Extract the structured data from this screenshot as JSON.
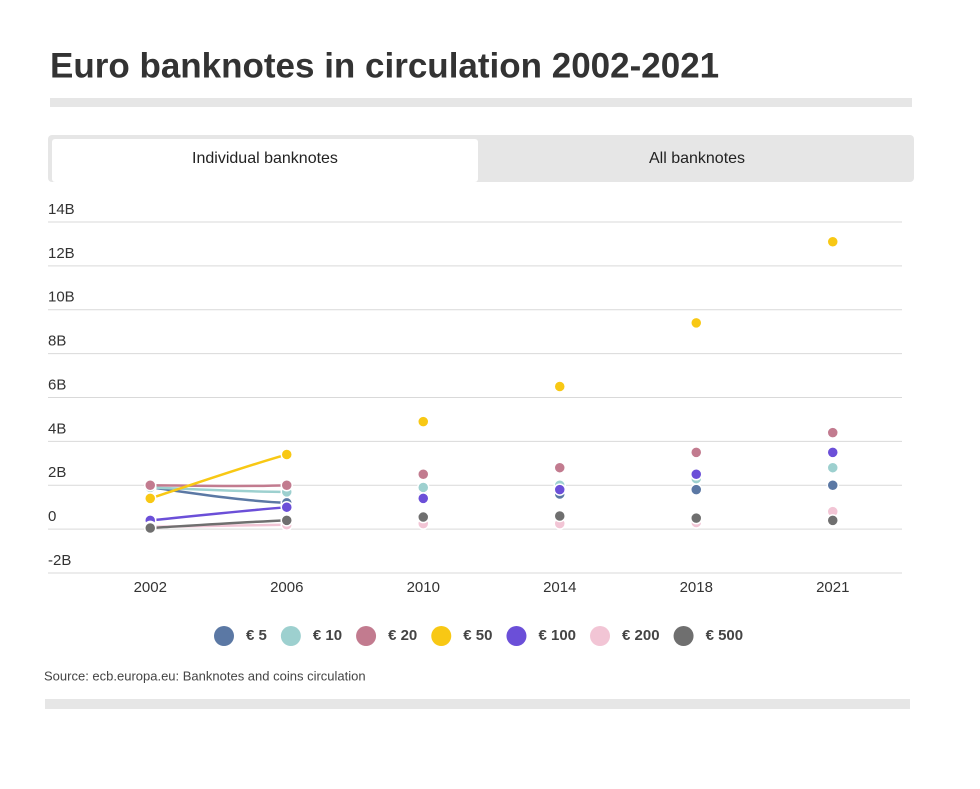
{
  "tabs": [
    "Individual banknotes",
    "All banknotes"
  ],
  "chart_data": {
    "type": "line",
    "title": "Euro banknotes in circulation 2002-2021",
    "source": "Source: ecb.europa.eu: Banknotes and coins circulation",
    "categories": [
      "2002",
      "2006",
      "2010",
      "2014",
      "2018",
      "2021"
    ],
    "ylim": [
      -2,
      14
    ],
    "yticks": [
      {
        "value": -2,
        "label": "-2B"
      },
      0,
      {
        "value": 2,
        "label": "2B"
      },
      {
        "value": 4,
        "label": "4B"
      },
      {
        "value": 6,
        "label": "6B"
      },
      {
        "value": 8,
        "label": "8B"
      },
      {
        "value": 10,
        "label": "10B"
      },
      {
        "value": 12,
        "label": "12B"
      },
      {
        "value": 14,
        "label": "14B"
      }
    ],
    "grid": true,
    "series": [
      {
        "name": "€ 5",
        "color": "#5b78a4",
        "values": [
          1.9,
          1.2,
          1.5,
          1.6,
          1.8,
          2.0
        ]
      },
      {
        "name": "€ 10",
        "color": "#9dd0cf",
        "values": [
          1.9,
          1.7,
          1.9,
          2.0,
          2.3,
          2.8
        ]
      },
      {
        "name": "€ 20",
        "color": "#c27b8f",
        "values": [
          2.0,
          2.0,
          2.5,
          2.8,
          3.5,
          4.4
        ]
      },
      {
        "name": "€ 50",
        "color": "#f8c814",
        "values": [
          1.4,
          3.4,
          4.9,
          6.5,
          9.4,
          13.1
        ]
      },
      {
        "name": "€ 100",
        "color": "#6b4fd8",
        "values": [
          0.4,
          1.0,
          1.4,
          1.8,
          2.5,
          3.5
        ]
      },
      {
        "name": "€ 200",
        "color": "#f2c5d5",
        "values": [
          0.1,
          0.2,
          0.25,
          0.25,
          0.3,
          0.8
        ]
      },
      {
        "name": "€ 500",
        "color": "#6f6f6f",
        "values": [
          0.05,
          0.4,
          0.55,
          0.6,
          0.5,
          0.4
        ]
      }
    ]
  }
}
